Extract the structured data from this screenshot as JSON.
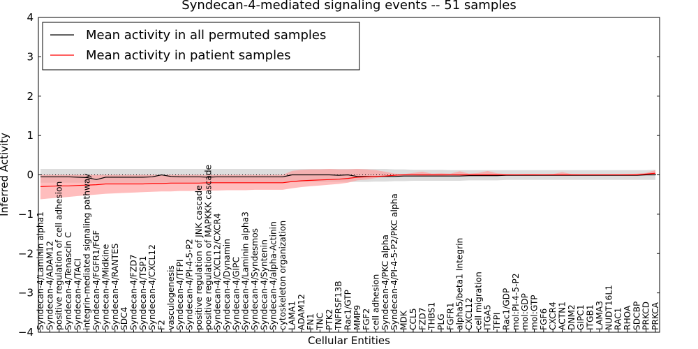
{
  "chart_data": {
    "type": "line",
    "title": "Syndecan-4-mediated signaling events -- 51 samples",
    "xlabel": "Cellular Entities",
    "ylabel": "Inferred Activity",
    "ylim": [
      -4,
      4
    ],
    "yticks": [
      -4,
      -3,
      -2,
      -1,
      0,
      1,
      2,
      3,
      4
    ],
    "legend_position": "top-left",
    "colors": {
      "permuted": "#000000",
      "patient": "#ff0000",
      "permuted_band": "#bbbbbb",
      "patient_band": "#ff9999"
    },
    "categories": [
      "Syndecan-4/Laminin alpha1",
      "Syndecan-4/ADAM12",
      "positive regulation of cell adhesion",
      "Syndecan-4/Tenascin C",
      "Syndecan-4/TACI",
      "integrin-mediated signaling pathway",
      "Syndecan-4/FGFR1/FGF",
      "Syndecan-4/Midkine",
      "Syndecan-4/RANTES",
      "SDC4",
      "Syndecan-4/FZD7",
      "Syndecan-4/TSP1",
      "Syndecan-4/CXCL12",
      "F2",
      "vasculogenesis",
      "Syndecan-4/TFPI",
      "Syndecan-4/PI-4-5-P2",
      "positive regulation of JNK cascade",
      "positive regulation of MAPKKK cascade",
      "Syndecan-4/CXCL12/CXCR4",
      "Syndecan-4/Dynamin",
      "Syndecan-4/GIPC",
      "Syndecan-4/Laminin alpha3",
      "Syndecan-4/Syndesmos",
      "Syndecan-4/Syntenin",
      "Syndecan-4/alpha-Actinin",
      "cytoskeleton organization",
      "LAMA1",
      "ADAM12",
      "FN1",
      "TNC",
      "PTK2",
      "TNFRSF13B",
      "Rac1/GTP",
      "MMP9",
      "FGF2",
      "cell adhesion",
      "Syndecan-4/PKC alpha",
      "Syndecan-4/PI-4-5-P2/PKC alpha",
      "MDK",
      "CCL5",
      "FZD7",
      "THBS1",
      "PLG",
      "FGFR1",
      "alpha5/beta1 Integrin",
      "CXCL12",
      "cell migration",
      "ITGA5",
      "TFPI",
      "Rac1/GDP",
      "mol:PI-4-5-P2",
      "mol:GDP",
      "mol:GTP",
      "FGF6",
      "CXCR4",
      "ACTN1",
      "DNM2",
      "GIPC1",
      "ITGB1",
      "LAMA3",
      "NUDT16L1",
      "RAC1",
      "RHOA",
      "SDCBP",
      "PRKCD",
      "PRKCA"
    ],
    "series": [
      {
        "name": "Mean activity in all permuted samples",
        "values": [
          -0.05,
          -0.05,
          -0.05,
          -0.05,
          -0.06,
          -0.07,
          -0.12,
          -0.06,
          -0.06,
          -0.06,
          -0.06,
          -0.06,
          -0.05,
          0.0,
          -0.04,
          -0.05,
          -0.05,
          -0.05,
          -0.06,
          -0.05,
          -0.05,
          -0.05,
          -0.05,
          -0.05,
          -0.05,
          -0.05,
          -0.05,
          0.0,
          0.0,
          0.0,
          0.0,
          0.0,
          -0.01,
          0.0,
          -0.04,
          -0.04,
          -0.04,
          -0.04,
          -0.04,
          -0.03,
          -0.03,
          -0.03,
          -0.03,
          -0.03,
          -0.03,
          -0.03,
          -0.02,
          -0.02,
          -0.02,
          -0.02,
          -0.01,
          -0.01,
          -0.01,
          -0.01,
          -0.01,
          -0.01,
          -0.01,
          -0.01,
          -0.01,
          -0.01,
          -0.01,
          -0.01,
          -0.01,
          -0.01,
          -0.01,
          0.0,
          0.0
        ],
        "lower": [
          -0.2,
          -0.2,
          -0.2,
          -0.2,
          -0.2,
          -0.2,
          -0.2,
          -0.2,
          -0.2,
          -0.2,
          -0.2,
          -0.2,
          -0.2,
          -0.2,
          -0.2,
          -0.2,
          -0.2,
          -0.2,
          -0.2,
          -0.2,
          -0.2,
          -0.2,
          -0.2,
          -0.2,
          -0.2,
          -0.2,
          -0.2,
          -0.18,
          -0.18,
          -0.18,
          -0.18,
          -0.18,
          -0.18,
          -0.18,
          -0.18,
          -0.18,
          -0.17,
          -0.17,
          -0.16,
          -0.16,
          -0.15,
          -0.15,
          -0.15,
          -0.15,
          -0.15,
          -0.15,
          -0.14,
          -0.14,
          -0.14,
          -0.14,
          -0.13,
          -0.13,
          -0.13,
          -0.13,
          -0.13,
          -0.13,
          -0.13,
          -0.13,
          -0.13,
          -0.13,
          -0.13,
          -0.13,
          -0.13,
          -0.13,
          -0.13,
          -0.13,
          -0.13
        ],
        "upper": [
          0.15,
          0.15,
          0.15,
          0.15,
          0.15,
          0.15,
          0.15,
          0.15,
          0.15,
          0.15,
          0.15,
          0.15,
          0.15,
          0.15,
          0.15,
          0.15,
          0.15,
          0.15,
          0.15,
          0.15,
          0.15,
          0.15,
          0.15,
          0.15,
          0.15,
          0.15,
          0.15,
          0.15,
          0.15,
          0.15,
          0.15,
          0.15,
          0.15,
          0.15,
          0.15,
          0.15,
          0.15,
          0.15,
          0.14,
          0.14,
          0.13,
          0.13,
          0.13,
          0.13,
          0.12,
          0.12,
          0.12,
          0.12,
          0.12,
          0.12,
          0.12,
          0.12,
          0.12,
          0.12,
          0.12,
          0.12,
          0.12,
          0.12,
          0.12,
          0.12,
          0.12,
          0.12,
          0.12,
          0.12,
          0.12,
          0.12,
          0.13
        ]
      },
      {
        "name": "Mean activity in patient samples",
        "values": [
          -0.3,
          -0.29,
          -0.28,
          -0.28,
          -0.27,
          -0.26,
          -0.25,
          -0.23,
          -0.23,
          -0.23,
          -0.23,
          -0.23,
          -0.22,
          -0.22,
          -0.21,
          -0.21,
          -0.21,
          -0.21,
          -0.2,
          -0.2,
          -0.2,
          -0.2,
          -0.2,
          -0.2,
          -0.2,
          -0.2,
          -0.2,
          -0.17,
          -0.15,
          -0.14,
          -0.13,
          -0.12,
          -0.11,
          -0.09,
          -0.06,
          -0.05,
          -0.04,
          -0.03,
          -0.01,
          0.0,
          0.0,
          0.0,
          0.0,
          0.0,
          0.0,
          0.0,
          0.0,
          0.0,
          0.0,
          0.0,
          0.0,
          0.0,
          0.0,
          0.0,
          0.0,
          0.0,
          0.0,
          0.0,
          0.0,
          0.0,
          0.0,
          0.0,
          0.0,
          0.0,
          0.0,
          0.02,
          0.04
        ],
        "lower": [
          -0.62,
          -0.6,
          -0.58,
          -0.56,
          -0.54,
          -0.52,
          -0.5,
          -0.48,
          -0.47,
          -0.46,
          -0.45,
          -0.44,
          -0.43,
          -0.42,
          -0.42,
          -0.41,
          -0.41,
          -0.4,
          -0.4,
          -0.4,
          -0.39,
          -0.39,
          -0.39,
          -0.38,
          -0.38,
          -0.38,
          -0.38,
          -0.34,
          -0.31,
          -0.29,
          -0.27,
          -0.25,
          -0.23,
          -0.2,
          -0.14,
          -0.12,
          -0.08,
          -0.04,
          -0.02,
          -0.01,
          -0.01,
          -0.02,
          -0.02,
          -0.02,
          -0.01,
          -0.02,
          -0.03,
          -0.02,
          -0.01,
          -0.01,
          -0.01,
          -0.01,
          -0.01,
          -0.01,
          -0.01,
          -0.01,
          -0.01,
          -0.01,
          -0.01,
          -0.01,
          -0.01,
          -0.01,
          -0.01,
          -0.01,
          -0.01,
          -0.01,
          0.0
        ],
        "upper": [
          0.0,
          0.0,
          0.0,
          0.0,
          0.0,
          0.0,
          0.0,
          0.0,
          0.0,
          0.0,
          0.0,
          0.0,
          0.0,
          0.0,
          0.0,
          0.0,
          0.0,
          0.0,
          0.0,
          0.0,
          0.0,
          0.0,
          0.0,
          0.0,
          0.0,
          0.0,
          0.0,
          0.1,
          0.13,
          0.14,
          0.14,
          0.15,
          0.14,
          0.14,
          0.15,
          0.14,
          0.12,
          0.08,
          0.03,
          0.02,
          0.05,
          0.08,
          0.03,
          0.04,
          0.03,
          0.09,
          0.03,
          0.05,
          0.1,
          0.04,
          0.02,
          0.01,
          0.02,
          0.02,
          0.01,
          0.02,
          0.07,
          0.02,
          0.01,
          0.01,
          0.01,
          0.01,
          0.01,
          0.02,
          0.03,
          0.05,
          0.12
        ]
      }
    ]
  }
}
